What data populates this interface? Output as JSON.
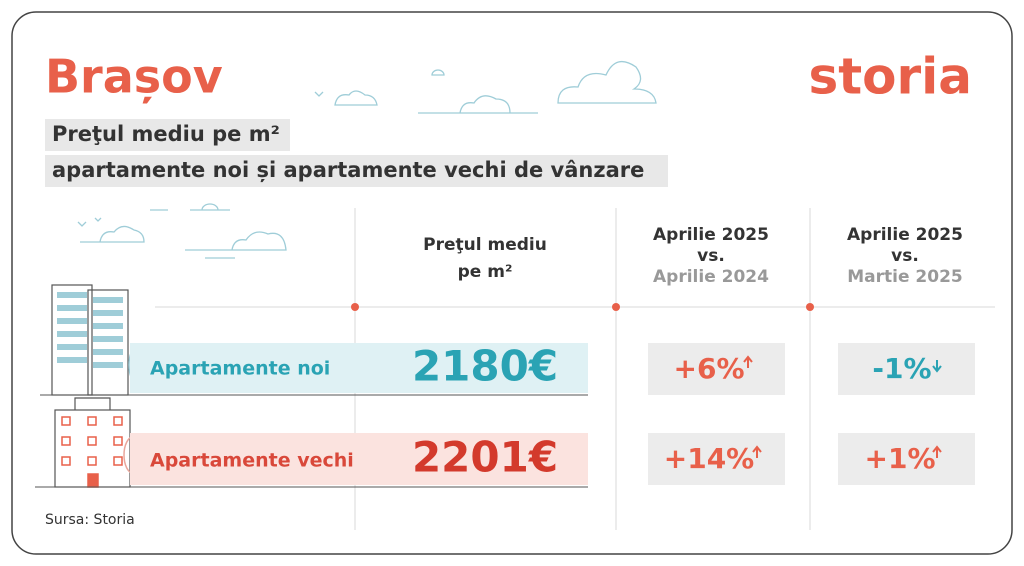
{
  "header": {
    "city": "Brașov",
    "logo": "storia",
    "subtitle": [
      "Preţul mediu pe m²",
      "apartamente noi și apartamente vechi de vânzare"
    ]
  },
  "table": {
    "columns": [
      [
        "Preţul mediu",
        "pe m²"
      ],
      [
        "Aprilie 2025",
        "vs.",
        "Aprilie 2024"
      ],
      [
        "Aprilie 2025",
        "vs.",
        "Martie 2025"
      ]
    ],
    "rows": [
      [
        "Apartamente noi",
        "2180€",
        "+6%",
        "-1%"
      ],
      [
        "Apartamente vechi",
        "2201€",
        "+14%",
        "+1%"
      ]
    ]
  },
  "footer": {
    "source": "Sursa: Storia"
  }
}
